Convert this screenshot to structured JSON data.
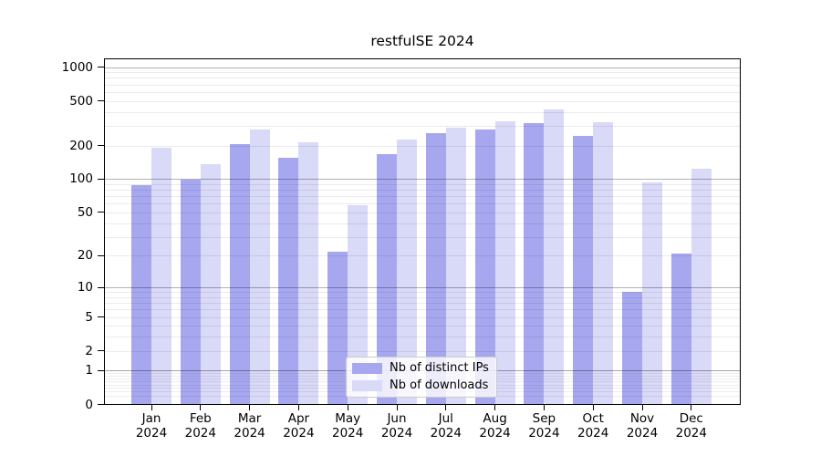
{
  "title": "restfulSE 2024",
  "chart_data": {
    "type": "bar",
    "title": "restfulSE 2024",
    "y_scale": "log10(1+x)",
    "grid": "on",
    "legend_position": "lower center",
    "categories": [
      "Jan",
      "Feb",
      "Mar",
      "Apr",
      "May",
      "Jun",
      "Jul",
      "Aug",
      "Sep",
      "Oct",
      "Nov",
      "Dec"
    ],
    "x_tick_line2": "2024",
    "y_ticks": [
      0,
      1,
      2,
      5,
      10,
      20,
      50,
      100,
      200,
      500,
      1000
    ],
    "ylim": [
      0,
      1200
    ],
    "series": [
      {
        "name": "Nb of distinct IPs",
        "color": "#a7a7f0",
        "values": [
          88,
          98,
          205,
          156,
          22,
          168,
          257,
          278,
          315,
          245,
          9,
          21
        ]
      },
      {
        "name": "Nb of downloads",
        "color": "#d9d9f8",
        "values": [
          190,
          137,
          280,
          215,
          58,
          225,
          287,
          328,
          420,
          322,
          93,
          123
        ]
      }
    ]
  },
  "colors": {
    "background": "#ffffff",
    "spine": "#000000",
    "major_grid": "rgba(0,0,0,0.30)",
    "minor_grid": "rgba(0,0,0,0.08)",
    "text": "#000000",
    "legend_border": "#cccccc",
    "legend_bg": "rgba(255,255,255,0.8)"
  }
}
